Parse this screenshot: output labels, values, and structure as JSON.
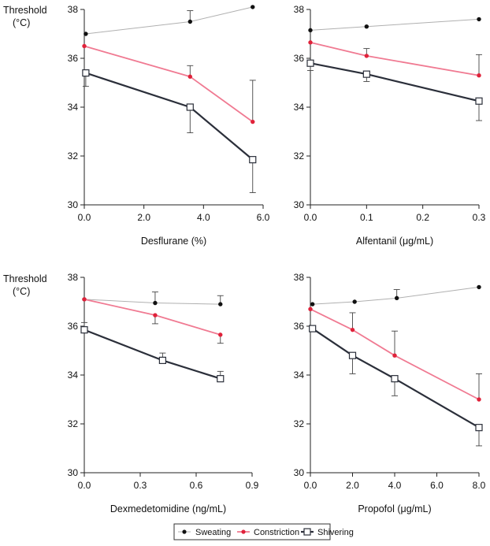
{
  "figure": {
    "ylabel_line1": "Threshold",
    "ylabel_line2": "(°C)"
  },
  "legend": {
    "items": [
      {
        "name": "Sweating",
        "color": "#b0b0b0",
        "marker": "filled-circle",
        "marker_color": "#111111"
      },
      {
        "name": "Constriction",
        "color": "#f07a92",
        "marker": "filled-circle",
        "marker_color": "#e0223a"
      },
      {
        "name": "Shivering",
        "color": "#2b2f3a",
        "marker": "open-square",
        "marker_color": "#2b2f3a"
      }
    ]
  },
  "chart_data": [
    {
      "type": "line",
      "xlabel": "Desflurane (%)",
      "ylabel": "Threshold (°C)",
      "xlim": [
        0,
        6.0
      ],
      "ylim": [
        30,
        38
      ],
      "xticks": [
        0,
        2,
        4,
        6
      ],
      "xtick_labels": [
        "0.0",
        "2.0",
        "4.0",
        "6.0"
      ],
      "yticks": [
        30,
        32,
        34,
        36,
        38
      ],
      "ytick_labels": [
        "30",
        "32",
        "34",
        "36",
        "38"
      ],
      "series": [
        {
          "name": "Sweating",
          "x": [
            0.05,
            3.55,
            5.65
          ],
          "y": [
            37.0,
            37.5,
            38.1
          ],
          "err_up": [
            0,
            0.45,
            0
          ],
          "err_down": [
            0,
            0,
            0
          ]
        },
        {
          "name": "Constriction",
          "x": [
            0,
            3.55,
            5.65
          ],
          "y": [
            36.5,
            35.25,
            33.4
          ],
          "err_up": [
            0,
            0.45,
            1.7
          ],
          "err_down": [
            0,
            0,
            0
          ]
        },
        {
          "name": "Shivering",
          "x": [
            0.05,
            3.55,
            5.65
          ],
          "y": [
            35.4,
            34.0,
            31.85
          ],
          "err_up": [
            0,
            0,
            0
          ],
          "err_down": [
            0.55,
            1.05,
            1.35
          ]
        }
      ]
    },
    {
      "type": "line",
      "xlabel": "Alfentanil (μg/mL)",
      "ylabel": "",
      "xlim": [
        0,
        0.3
      ],
      "ylim": [
        30,
        38
      ],
      "xticks": [
        0,
        0.1,
        0.2,
        0.3
      ],
      "xtick_labels": [
        "0.0",
        "0.1",
        "0.2",
        "0.3"
      ],
      "yticks": [
        30,
        32,
        34,
        36,
        38
      ],
      "ytick_labels": [
        "30",
        "32",
        "34",
        "36",
        "38"
      ],
      "series": [
        {
          "name": "Sweating",
          "x": [
            0,
            0.1,
            0.3
          ],
          "y": [
            37.15,
            37.3,
            37.6
          ],
          "err_up": [
            0,
            0,
            0
          ],
          "err_down": [
            0,
            0,
            0
          ]
        },
        {
          "name": "Constriction",
          "x": [
            0,
            0.1,
            0.3
          ],
          "y": [
            36.65,
            36.1,
            35.3
          ],
          "err_up": [
            0,
            0.3,
            0.85
          ],
          "err_down": [
            0,
            0,
            0
          ]
        },
        {
          "name": "Shivering",
          "x": [
            0,
            0.1,
            0.3
          ],
          "y": [
            35.8,
            35.35,
            34.25
          ],
          "err_up": [
            0,
            0,
            0
          ],
          "err_down": [
            0.3,
            0.3,
            0.8
          ]
        }
      ]
    },
    {
      "type": "line",
      "xlabel": "Dexmedetomidine (ng/mL)",
      "ylabel": "Threshold (°C)",
      "xlim": [
        0,
        0.9
      ],
      "ylim": [
        30,
        38
      ],
      "xticks": [
        0,
        0.3,
        0.6,
        0.9
      ],
      "xtick_labels": [
        "0.0",
        "0.3",
        "0.6",
        "0.9"
      ],
      "yticks": [
        30,
        32,
        34,
        36,
        38
      ],
      "ytick_labels": [
        "30",
        "32",
        "34",
        "36",
        "38"
      ],
      "series": [
        {
          "name": "Sweating",
          "x": [
            0,
            0.38,
            0.73
          ],
          "y": [
            37.1,
            36.95,
            36.9
          ],
          "err_up": [
            0,
            0.45,
            0.35
          ],
          "err_down": [
            0,
            0,
            0
          ]
        },
        {
          "name": "Constriction",
          "x": [
            0,
            0.38,
            0.73
          ],
          "y": [
            37.1,
            36.45,
            35.65
          ],
          "err_up": [
            0,
            0,
            0
          ],
          "err_down": [
            0,
            0.35,
            0.35
          ]
        },
        {
          "name": "Shivering",
          "x": [
            0,
            0.42,
            0.73
          ],
          "y": [
            35.85,
            34.6,
            33.85
          ],
          "err_up": [
            0.3,
            0.3,
            0.3
          ],
          "err_down": [
            0,
            0,
            0
          ]
        }
      ]
    },
    {
      "type": "line",
      "xlabel": "Propofol (μg/mL)",
      "ylabel": "",
      "xlim": [
        0,
        8.0
      ],
      "ylim": [
        30,
        38
      ],
      "xticks": [
        0,
        2,
        4,
        6,
        8
      ],
      "xtick_labels": [
        "0.0",
        "2.0",
        "4.0",
        "6.0",
        "8.0"
      ],
      "yticks": [
        30,
        32,
        34,
        36,
        38
      ],
      "ytick_labels": [
        "30",
        "32",
        "34",
        "36",
        "38"
      ],
      "series": [
        {
          "name": "Sweating",
          "x": [
            0.1,
            2.1,
            4.1,
            8.0
          ],
          "y": [
            36.9,
            37.0,
            37.15,
            37.6
          ],
          "err_up": [
            0,
            0,
            0.35,
            0
          ],
          "err_down": [
            0,
            0,
            0,
            0
          ]
        },
        {
          "name": "Constriction",
          "x": [
            0,
            2.0,
            4.0,
            8.0
          ],
          "y": [
            36.7,
            35.85,
            34.8,
            33.0
          ],
          "err_up": [
            0,
            0.7,
            1.0,
            1.05
          ],
          "err_down": [
            0,
            0,
            0,
            0
          ]
        },
        {
          "name": "Shivering",
          "x": [
            0.1,
            2.0,
            4.0,
            8.0
          ],
          "y": [
            35.9,
            34.8,
            33.85,
            31.85
          ],
          "err_up": [
            0,
            0,
            0,
            0
          ],
          "err_down": [
            0,
            0.75,
            0.7,
            0.75
          ]
        }
      ]
    }
  ]
}
